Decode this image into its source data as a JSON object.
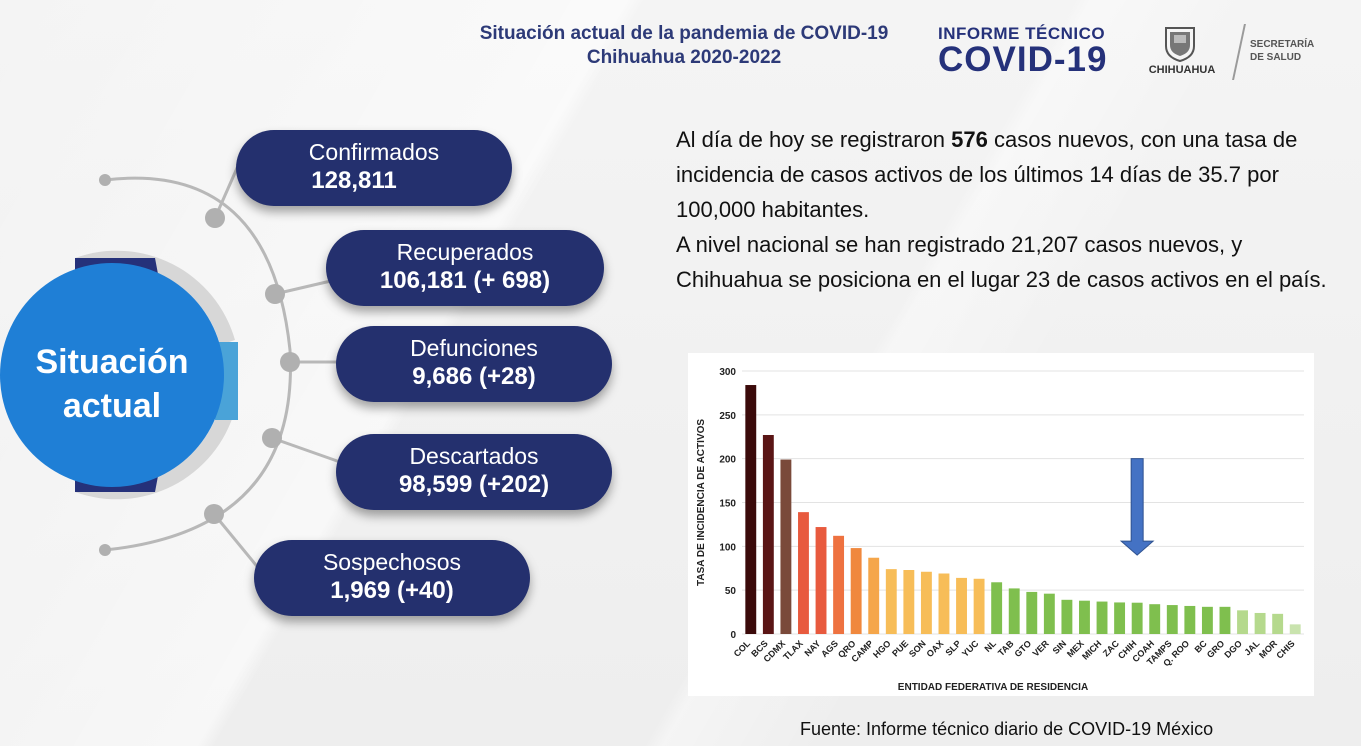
{
  "header": {
    "title_line1": "Situación actual de la pandemia de COVID-19",
    "title_line2": "Chihuahua 2020-2022",
    "informe": "INFORME TÉCNICO",
    "covid": "COVID-19",
    "chihuahua": "CHIHUAHUA",
    "secretaria_line1": "SECRETARÍA",
    "secretaria_line2": "DE SALUD"
  },
  "situacion": {
    "title_line1": "Situación",
    "title_line2": "actual",
    "items": [
      {
        "label": "Confirmados",
        "value": "128,811"
      },
      {
        "label": "Recuperados",
        "value": "106,181 (+ 698)"
      },
      {
        "label": "Defunciones",
        "value": "9,686 (+28)"
      },
      {
        "label": "Descartados",
        "value": "98,599 (+202)"
      },
      {
        "label": "Sospechosos",
        "value": "1,969 (+40)"
      }
    ]
  },
  "paragraph": {
    "p1_before": "Al día de hoy se registraron ",
    "p1_bold": "576",
    "p1_after": " casos nuevos, con una tasa de incidencia de casos activos de los últimos 14 días de 35.7 por 100,000 habitantes.",
    "p2": "A nivel nacional se han registrado 21,207 casos nuevos, y Chihuahua se posiciona en el lugar 23 de casos activos en el país."
  },
  "source": "Fuente: Informe técnico diario de COVID-19 México",
  "chart_data": {
    "type": "bar",
    "title": "",
    "xlabel": "ENTIDAD FEDERATIVA DE RESIDENCIA",
    "ylabel": "TASA DE INCIDENCIA DE ACTIVOS",
    "ylim": [
      0,
      300
    ],
    "yticks": [
      0,
      50,
      100,
      150,
      200,
      250,
      300
    ],
    "grid": true,
    "highlight": "CHIH",
    "categories": [
      "COL",
      "BCS",
      "CDMX",
      "TLAX",
      "NAY",
      "AGS",
      "QRO",
      "CAMP",
      "HGO",
      "PUE",
      "SON",
      "OAX",
      "SLP",
      "YUC",
      "NL",
      "TAB",
      "GTO",
      "VER",
      "SIN",
      "MEX",
      "MICH",
      "ZAC",
      "CHIH",
      "COAH",
      "TAMPS",
      "Q. ROO",
      "BC",
      "GRO",
      "DGO",
      "JAL",
      "MOR",
      "CHIS"
    ],
    "values": [
      284,
      227,
      199,
      139,
      122,
      112,
      98,
      87,
      74,
      73,
      71,
      69,
      64,
      63,
      59,
      52,
      48,
      46,
      39,
      38,
      37,
      36,
      35.7,
      34,
      33,
      32,
      31,
      31,
      27,
      24,
      23,
      11
    ],
    "colors": [
      "#3b0a0a",
      "#5a1515",
      "#7a4a3a",
      "#e85a3e",
      "#e85a3e",
      "#ee7240",
      "#f0883e",
      "#f5a64a",
      "#f7bd58",
      "#f7bd58",
      "#f7bd58",
      "#f7bd58",
      "#f7bd58",
      "#f7bd58",
      "#7fbf4e",
      "#7fbf4e",
      "#7fbf4e",
      "#7fbf4e",
      "#7fbf4e",
      "#7fbf4e",
      "#7fbf4e",
      "#7fbf4e",
      "#7fbf4e",
      "#7fbf4e",
      "#7fbf4e",
      "#7fbf4e",
      "#7fbf4e",
      "#7fbf4e",
      "#b5d98d",
      "#b5d98d",
      "#b5d98d",
      "#c9e3ae"
    ],
    "arrow_color": "#4472c4"
  },
  "colors": {
    "navy": "#24306e",
    "circle_blue": "#1f7fd6",
    "circle_rim": "#25317a",
    "header_blue": "#2d3a78"
  }
}
